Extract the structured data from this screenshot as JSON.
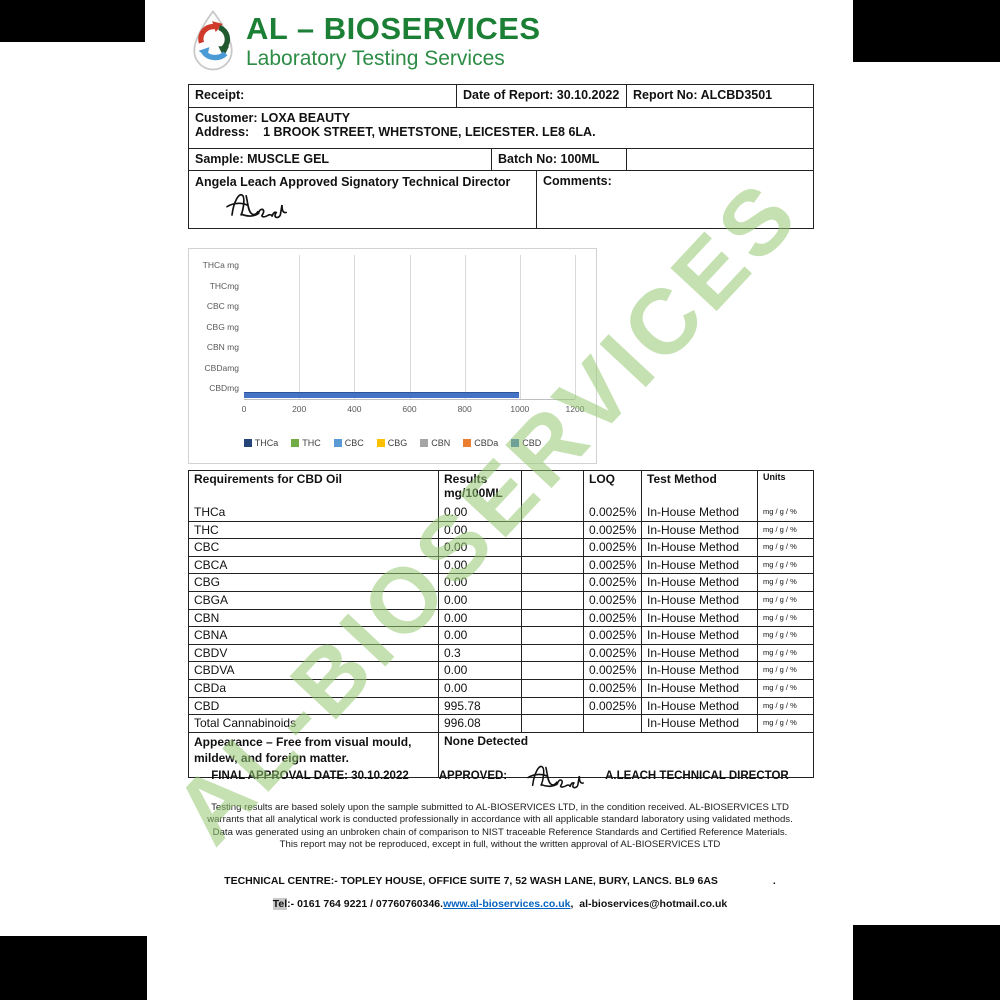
{
  "header": {
    "title": "AL – BIOSERVICES",
    "subtitle": "Laboratory Testing Services",
    "title_color": "#1b7f35",
    "subtitle_color": "#2d8c46",
    "logo_icon": "water-drop-recycle-arrows"
  },
  "watermark": {
    "text": "AL-BIOSERVICES",
    "color": "rgba(150,201,115,0.55)"
  },
  "info_table": {
    "receipt_label": "Receipt:",
    "date_of_report": "Date of Report: 30.10.2022",
    "report_no": "Report No: ALCBD3501",
    "customer": "Customer: LOXA BEAUTY",
    "address_label": "Address:",
    "address_value": "1 BROOK STREET, WHETSTONE, LEICESTER. LE8 6LA.",
    "sample": "Sample: MUSCLE GEL",
    "batch_no": "Batch No: 100ML",
    "signatory": "Angela Leach Approved Signatory Technical Director",
    "comments_label": "Comments:"
  },
  "chart_data": {
    "type": "bar",
    "orientation": "horizontal",
    "categories": [
      "THCa mg",
      "THCmg",
      "CBC mg",
      "CBG mg",
      "CBN mg",
      "CBDamg",
      "CBDmg"
    ],
    "series": [
      {
        "name": "THCa",
        "color": "#264478",
        "values": [
          0,
          0,
          0,
          0,
          0,
          0,
          0
        ]
      },
      {
        "name": "THC",
        "color": "#70AD47",
        "values": [
          0,
          0,
          0,
          0,
          0,
          0,
          0
        ]
      },
      {
        "name": "CBC",
        "color": "#5B9BD5",
        "values": [
          0,
          0,
          0,
          0,
          0,
          0,
          0
        ]
      },
      {
        "name": "CBG",
        "color": "#FFC000",
        "values": [
          0,
          0,
          0,
          0,
          0,
          0,
          0
        ]
      },
      {
        "name": "CBN",
        "color": "#A5A5A5",
        "values": [
          0,
          0,
          0,
          0,
          0,
          0,
          0
        ]
      },
      {
        "name": "CBDa",
        "color": "#ED7D31",
        "values": [
          0,
          0,
          0,
          0,
          0,
          0,
          0
        ]
      },
      {
        "name": "CBD",
        "color": "#4472C4",
        "values": [
          0,
          0,
          0,
          0,
          0,
          0,
          995.78
        ]
      }
    ],
    "xlim": [
      0,
      1200
    ],
    "x_ticks": [
      0,
      200,
      400,
      600,
      800,
      1000,
      1200
    ],
    "grid": true,
    "legend_position": "bottom",
    "title": "",
    "xlabel": "",
    "ylabel": ""
  },
  "results_table": {
    "headers": {
      "col1": "Requirements for CBD Oil",
      "col2_line1": "Results",
      "col2_line2": "mg/100ML",
      "col3": "",
      "col4": "LOQ",
      "col5": "Test Method",
      "col6": "Units"
    },
    "rows": [
      {
        "name": "THCa",
        "result": "0.00",
        "loq": "0.0025%",
        "method": "In-House Method",
        "units": "mg / g / %"
      },
      {
        "name": "THC",
        "result": "0.00",
        "loq": "0.0025%",
        "method": "In-House Method",
        "units": "mg / g / %"
      },
      {
        "name": "CBC",
        "result": "0.00",
        "loq": "0.0025%",
        "method": "In-House Method",
        "units": "mg / g / %"
      },
      {
        "name": "CBCA",
        "result": "0.00",
        "loq": "0.0025%",
        "method": "In-House Method",
        "units": "mg / g / %"
      },
      {
        "name": "CBG",
        "result": "0.00",
        "loq": "0.0025%",
        "method": "In-House Method",
        "units": "mg / g / %"
      },
      {
        "name": "CBGA",
        "result": "0.00",
        "loq": "0.0025%",
        "method": "In-House Method",
        "units": "mg / g / %"
      },
      {
        "name": "CBN",
        "result": "0.00",
        "loq": "0.0025%",
        "method": "In-House Method",
        "units": "mg / g / %"
      },
      {
        "name": "CBNA",
        "result": "0.00",
        "loq": "0.0025%",
        "method": "In-House Method",
        "units": "mg / g / %"
      },
      {
        "name": "CBDV",
        "result": "0.3",
        "loq": "0.0025%",
        "method": "In-House Method",
        "units": "mg / g / %"
      },
      {
        "name": "CBDVA",
        "result": "0.00",
        "loq": "0.0025%",
        "method": "In-House Method",
        "units": "mg / g / %"
      },
      {
        "name": "CBDa",
        "result": "0.00",
        "loq": "0.0025%",
        "method": "In-House Method",
        "units": "mg / g / %"
      },
      {
        "name": "CBD",
        "result": "995.78",
        "loq": "0.0025%",
        "method": "In-House Method",
        "units": "mg / g / %"
      },
      {
        "name": "Total Cannabinoids",
        "result": "996.08",
        "loq": "",
        "method": "In-House Method",
        "units": "mg / g / %"
      }
    ],
    "appearance_label": "Appearance – Free from visual mould, mildew, and foreign matter.",
    "appearance_value": "None Detected"
  },
  "approval": {
    "date_text": "FINAL APPROVAL DATE: 30.10.2022",
    "approved_label": "APPROVED:",
    "approver": "A.LEACH TECHNICAL DIRECTOR"
  },
  "disclaimer": "Testing results are based solely upon the sample submitted to AL-BIOSERVICES LTD, in the condition received. AL-BIOSERVICES LTD warrants that all analytical work is conducted professionally in accordance with all applicable standard laboratory using validated methods. Data was generated using an unbroken chain of comparison to NIST traceable Reference Standards and Certified Reference Materials. This report may not be reproduced, except in full, without the written approval of AL-BIOSERVICES LTD",
  "footer": {
    "line1": "TECHNICAL CENTRE:- TOPLEY HOUSE, OFFICE SUITE 7, 52 WASH LANE, BURY, LANCS. BL9 6AS",
    "line1_period": ".",
    "tel_label": "Tel",
    "tel_rest": ":- 0161 764 9221 / 07760760346.",
    "website": "www.al-bioservices.co.uk",
    "separator": ",",
    "email": "al-bioservices@hotmail.co.uk"
  }
}
